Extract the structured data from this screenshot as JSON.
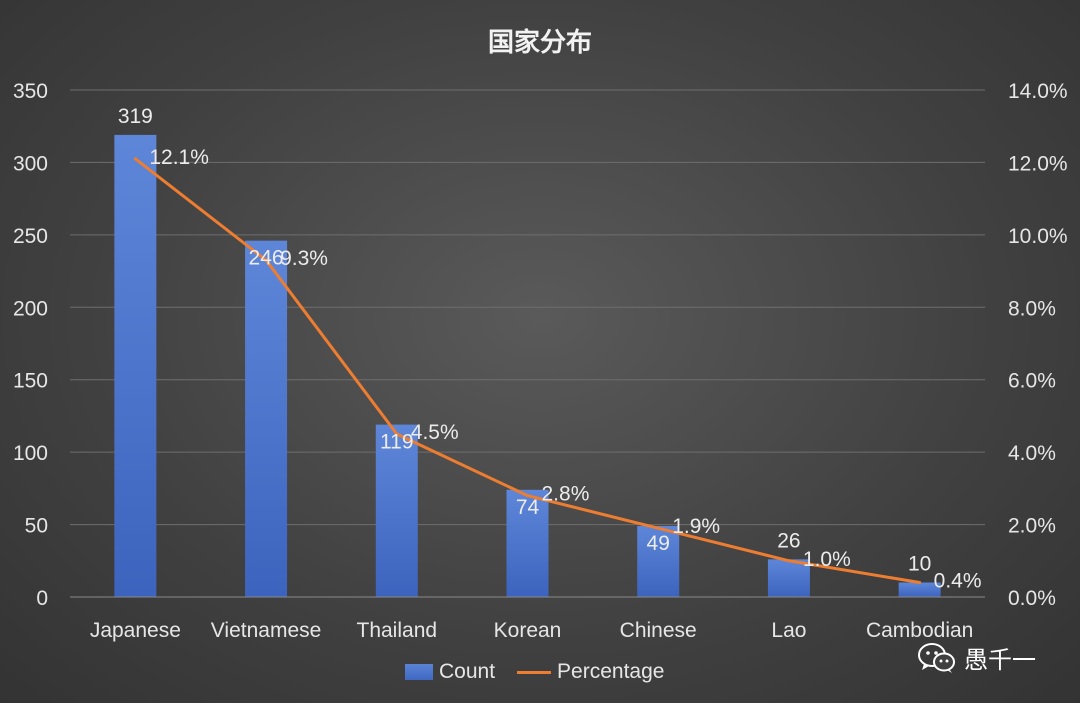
{
  "chart_data": {
    "type": "bar",
    "title": "国家分布",
    "categories": [
      "Japanese",
      "Vietnamese",
      "Thailand",
      "Korean",
      "Chinese",
      "Lao",
      "Cambodian"
    ],
    "series": [
      {
        "name": "Count",
        "type": "bar",
        "axis": "left",
        "values": [
          319,
          246,
          119,
          74,
          49,
          26,
          10
        ],
        "labels": [
          "319",
          "246",
          "119",
          "74",
          "49",
          "26",
          "10"
        ]
      },
      {
        "name": "Percentage",
        "type": "line",
        "axis": "right",
        "values": [
          12.1,
          9.3,
          4.5,
          2.8,
          1.9,
          1.0,
          0.4
        ],
        "labels": [
          "12.1%",
          "9.3%",
          "4.5%",
          "2.8%",
          "1.9%",
          "1.0%",
          "0.4%"
        ]
      }
    ],
    "y_left": {
      "ylim": [
        0,
        350
      ],
      "ticks": [
        "0",
        "50",
        "100",
        "150",
        "200",
        "250",
        "300",
        "350"
      ]
    },
    "y_right": {
      "ylim": [
        0,
        14
      ],
      "ticks": [
        "0.0%",
        "2.0%",
        "4.0%",
        "6.0%",
        "8.0%",
        "10.0%",
        "12.0%",
        "14.0%"
      ]
    },
    "xlabel": "",
    "ylabel": "",
    "grid": true,
    "legend": "bottom-center",
    "colors": {
      "bar": "#4472c4",
      "line": "#ed7d31",
      "grid": "#6e6e6e",
      "text": "#e6e6e6"
    }
  },
  "watermark": {
    "text": "愚千一",
    "icon": "wechat-icon"
  }
}
